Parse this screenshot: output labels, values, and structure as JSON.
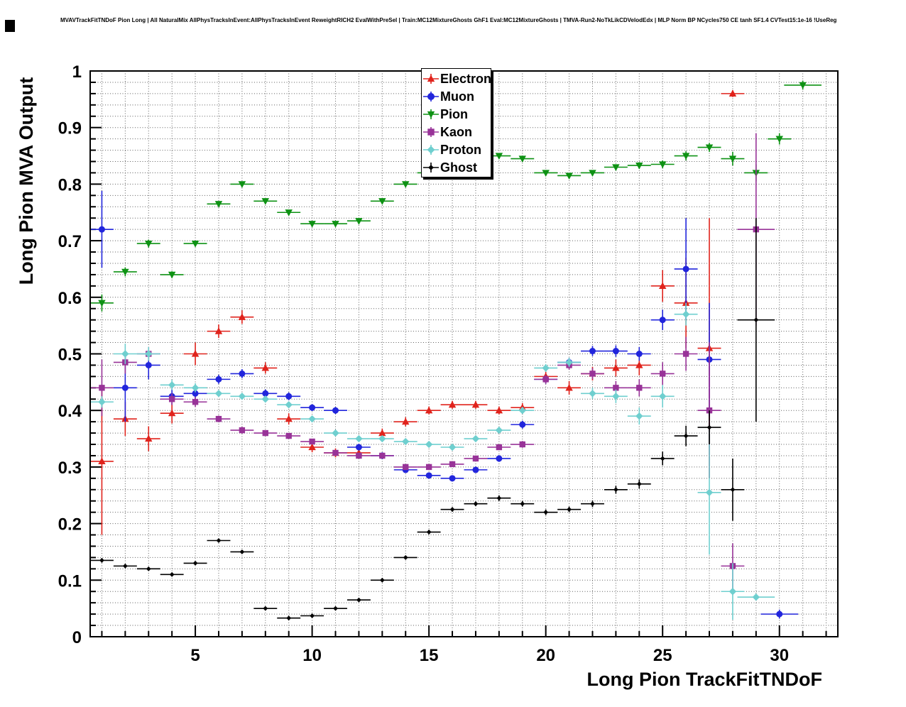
{
  "chart_data": {
    "type": "scatter",
    "title": "MVAVTrackFitTNDoF Pion Long | All NaturalMix AllPhysTracksInEvent:AllPhysTracksInEvent ReweightRICH2 EvalWithPreSel | Train:MC12MixtureGhosts GhF1 Eval:MC12MixtureGhosts | TMVA-Run2-NoTkLikCDVelodEdx | MLP Norm BP NCycles750 CE tanh SF1.4 CVTest15:1e-16 !UseReg",
    "xlabel": "Long Pion TrackFitTNDoF",
    "ylabel": "Long Pion MVA Output",
    "xlim": [
      0.5,
      32.5
    ],
    "ylim": [
      0,
      1
    ],
    "xticks": [
      5,
      10,
      15,
      20,
      25,
      30
    ],
    "yticks": [
      0,
      0.1,
      0.2,
      0.3,
      0.4,
      0.5,
      0.6,
      0.7,
      0.8,
      0.9,
      1
    ],
    "x_minor_step": 1,
    "y_minor_step": 0.02,
    "grid": true,
    "legend_position": "top-center",
    "bin_half_width": 0.5,
    "series": [
      {
        "name": "Electron",
        "color": "#e0231c",
        "marker": "triangle-up",
        "marker_size": 5.5,
        "points": [
          [
            1,
            0.31,
            0.13
          ],
          [
            2,
            0.385,
            0.03
          ],
          [
            3,
            0.35,
            0.022
          ],
          [
            4,
            0.395,
            0.018
          ],
          [
            5,
            0.5,
            0.02
          ],
          [
            6,
            0.54,
            0.012
          ],
          [
            7,
            0.565,
            0.012
          ],
          [
            8,
            0.475,
            0.01
          ],
          [
            9,
            0.385,
            0.01
          ],
          [
            10,
            0.335,
            0.009
          ],
          [
            11,
            0.325,
            0.008
          ],
          [
            12,
            0.325,
            0.008
          ],
          [
            13,
            0.36,
            0.008
          ],
          [
            14,
            0.38,
            0.008
          ],
          [
            15,
            0.4,
            0.007
          ],
          [
            16,
            0.41,
            0.007
          ],
          [
            17,
            0.41,
            0.007
          ],
          [
            18,
            0.4,
            0.007
          ],
          [
            19,
            0.405,
            0.008
          ],
          [
            20,
            0.46,
            0.01
          ],
          [
            21,
            0.44,
            0.012
          ],
          [
            22,
            0.465,
            0.012
          ],
          [
            23,
            0.475,
            0.015
          ],
          [
            24,
            0.48,
            0.018
          ],
          [
            25,
            0.62,
            0.028
          ],
          [
            26,
            0.59,
            0.08
          ],
          [
            27,
            0.51,
            0.23
          ],
          [
            28,
            0.96,
            0.006
          ]
        ]
      },
      {
        "name": "Muon",
        "color": "#2125dc",
        "marker": "circle",
        "marker_size": 4.5,
        "points": [
          [
            1,
            0.72,
            0.068
          ],
          [
            2,
            0.44,
            0.06
          ],
          [
            3,
            0.48,
            0.025
          ],
          [
            4,
            0.425,
            0.015
          ],
          [
            5,
            0.43,
            0.012
          ],
          [
            6,
            0.455,
            0.008
          ],
          [
            7,
            0.465,
            0.008
          ],
          [
            8,
            0.43,
            0.007
          ],
          [
            9,
            0.425,
            0.007
          ],
          [
            10,
            0.405,
            0.006
          ],
          [
            11,
            0.4,
            0.006
          ],
          [
            12,
            0.335,
            0.006
          ],
          [
            13,
            0.32,
            0.006
          ],
          [
            14,
            0.295,
            0.005
          ],
          [
            15,
            0.285,
            0.005
          ],
          [
            16,
            0.28,
            0.005
          ],
          [
            17,
            0.295,
            0.005
          ],
          [
            18,
            0.315,
            0.006
          ],
          [
            19,
            0.375,
            0.007
          ],
          [
            20,
            0.455,
            0.008
          ],
          [
            21,
            0.485,
            0.008
          ],
          [
            22,
            0.505,
            0.009
          ],
          [
            23,
            0.505,
            0.01
          ],
          [
            24,
            0.5,
            0.012
          ],
          [
            25,
            0.56,
            0.018
          ],
          [
            26,
            0.65,
            0.09
          ],
          [
            27,
            0.49,
            0.1
          ],
          [
            30,
            0.04,
            0.008,
            0.8
          ]
        ]
      },
      {
        "name": "Pion",
        "color": "#0e9214",
        "marker": "triangle-down",
        "marker_size": 5.5,
        "points": [
          [
            1,
            0.59,
            0.015
          ],
          [
            2,
            0.645,
            0.008
          ],
          [
            3,
            0.695,
            0.007
          ],
          [
            4,
            0.64,
            0.006
          ],
          [
            5,
            0.695,
            0.005
          ],
          [
            6,
            0.765,
            0.004
          ],
          [
            7,
            0.8,
            0.004
          ],
          [
            8,
            0.77,
            0.004
          ],
          [
            9,
            0.75,
            0.003
          ],
          [
            10,
            0.73,
            0.003
          ],
          [
            11,
            0.73,
            0.003
          ],
          [
            12,
            0.735,
            0.003
          ],
          [
            13,
            0.77,
            0.003
          ],
          [
            14,
            0.8,
            0.003
          ],
          [
            15,
            0.82,
            0.003
          ],
          [
            16,
            0.84,
            0.003
          ],
          [
            17,
            0.85,
            0.003
          ],
          [
            18,
            0.85,
            0.003
          ],
          [
            19,
            0.845,
            0.004
          ],
          [
            20,
            0.82,
            0.004
          ],
          [
            21,
            0.815,
            0.004
          ],
          [
            22,
            0.82,
            0.005
          ],
          [
            23,
            0.83,
            0.005
          ],
          [
            24,
            0.833,
            0.006
          ],
          [
            25,
            0.835,
            0.007
          ],
          [
            26,
            0.85,
            0.008
          ],
          [
            27,
            0.865,
            0.008
          ],
          [
            28,
            0.845,
            0.012
          ],
          [
            29,
            0.82,
            0.015
          ],
          [
            30,
            0.88,
            0.01
          ],
          [
            31,
            0.975,
            0.008,
            0.8
          ]
        ]
      },
      {
        "name": "Kaon",
        "color": "#983398",
        "marker": "square",
        "marker_size": 4.2,
        "points": [
          [
            1,
            0.44,
            0.05
          ],
          [
            2,
            0.485,
            0.02
          ],
          [
            3,
            0.5,
            0.012
          ],
          [
            4,
            0.42,
            0.01
          ],
          [
            5,
            0.415,
            0.009
          ],
          [
            6,
            0.385,
            0.006
          ],
          [
            7,
            0.365,
            0.006
          ],
          [
            8,
            0.36,
            0.005
          ],
          [
            9,
            0.355,
            0.005
          ],
          [
            10,
            0.345,
            0.005
          ],
          [
            11,
            0.325,
            0.005
          ],
          [
            12,
            0.32,
            0.005
          ],
          [
            13,
            0.32,
            0.005
          ],
          [
            14,
            0.3,
            0.004
          ],
          [
            15,
            0.3,
            0.004
          ],
          [
            16,
            0.305,
            0.005
          ],
          [
            17,
            0.315,
            0.005
          ],
          [
            18,
            0.335,
            0.005
          ],
          [
            19,
            0.34,
            0.006
          ],
          [
            20,
            0.455,
            0.008
          ],
          [
            21,
            0.48,
            0.008
          ],
          [
            22,
            0.465,
            0.01
          ],
          [
            23,
            0.44,
            0.012
          ],
          [
            24,
            0.44,
            0.015
          ],
          [
            25,
            0.465,
            0.02
          ],
          [
            26,
            0.5,
            0.03
          ],
          [
            27,
            0.4,
            0.12
          ],
          [
            28,
            0.125,
            0.04
          ],
          [
            29,
            0.72,
            0.17,
            0.8
          ]
        ]
      },
      {
        "name": "Proton",
        "color": "#6fcfcf",
        "marker": "diamond",
        "marker_size": 5.2,
        "points": [
          [
            1,
            0.415,
            0.01
          ],
          [
            2,
            0.5,
            0.018
          ],
          [
            3,
            0.5,
            0.012
          ],
          [
            4,
            0.445,
            0.009
          ],
          [
            5,
            0.44,
            0.008
          ],
          [
            6,
            0.43,
            0.006
          ],
          [
            7,
            0.425,
            0.006
          ],
          [
            8,
            0.42,
            0.005
          ],
          [
            9,
            0.41,
            0.005
          ],
          [
            10,
            0.385,
            0.004
          ],
          [
            11,
            0.36,
            0.004
          ],
          [
            12,
            0.35,
            0.004
          ],
          [
            13,
            0.35,
            0.004
          ],
          [
            14,
            0.345,
            0.004
          ],
          [
            15,
            0.34,
            0.004
          ],
          [
            16,
            0.335,
            0.004
          ],
          [
            17,
            0.35,
            0.004
          ],
          [
            18,
            0.365,
            0.005
          ],
          [
            19,
            0.4,
            0.006
          ],
          [
            20,
            0.475,
            0.007
          ],
          [
            21,
            0.485,
            0.008
          ],
          [
            22,
            0.43,
            0.01
          ],
          [
            23,
            0.425,
            0.012
          ],
          [
            24,
            0.39,
            0.015
          ],
          [
            25,
            0.425,
            0.02
          ],
          [
            26,
            0.57,
            0.02
          ],
          [
            27,
            0.255,
            0.11
          ],
          [
            28,
            0.08,
            0.05
          ],
          [
            29,
            0.07,
            0.006,
            0.8
          ]
        ]
      },
      {
        "name": "Ghost",
        "color": "#000000",
        "marker": "diamond",
        "marker_size": 3.4,
        "points": [
          [
            1,
            0.135,
            0.004
          ],
          [
            2,
            0.125,
            0.003
          ],
          [
            3,
            0.12,
            0.003
          ],
          [
            4,
            0.11,
            0.003
          ],
          [
            5,
            0.13,
            0.003
          ],
          [
            6,
            0.17,
            0.003
          ],
          [
            7,
            0.15,
            0.003
          ],
          [
            8,
            0.05,
            0.002
          ],
          [
            9,
            0.033,
            0.002
          ],
          [
            10,
            0.037,
            0.002
          ],
          [
            11,
            0.05,
            0.002
          ],
          [
            12,
            0.065,
            0.002
          ],
          [
            13,
            0.1,
            0.003
          ],
          [
            14,
            0.14,
            0.003
          ],
          [
            15,
            0.185,
            0.004
          ],
          [
            16,
            0.225,
            0.004
          ],
          [
            17,
            0.235,
            0.004
          ],
          [
            18,
            0.245,
            0.005
          ],
          [
            19,
            0.235,
            0.005
          ],
          [
            20,
            0.22,
            0.005
          ],
          [
            21,
            0.225,
            0.005
          ],
          [
            22,
            0.235,
            0.006
          ],
          [
            23,
            0.26,
            0.007
          ],
          [
            24,
            0.27,
            0.008
          ],
          [
            25,
            0.315,
            0.012
          ],
          [
            26,
            0.355,
            0.018
          ],
          [
            27,
            0.37,
            0.03
          ],
          [
            28,
            0.26,
            0.055
          ],
          [
            29,
            0.56,
            0.18,
            0.8
          ]
        ]
      }
    ]
  }
}
